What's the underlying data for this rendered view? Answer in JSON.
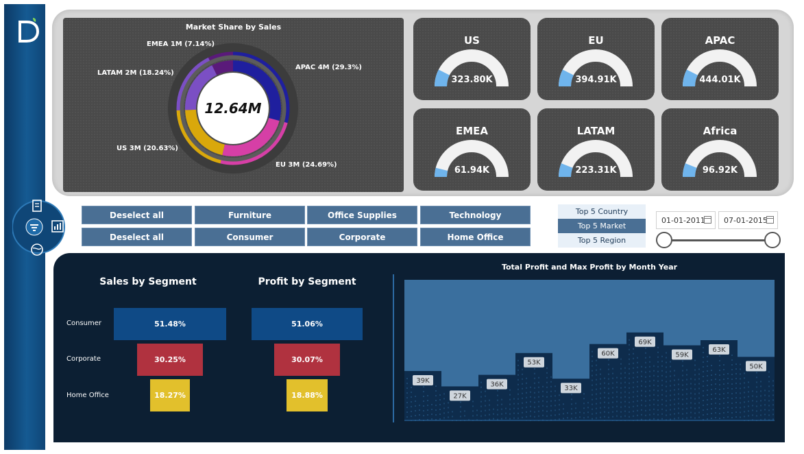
{
  "donut": {
    "title": "Market Share by Sales",
    "center_value": "12.64M",
    "labels": [
      {
        "text": "EMEA 1M (7.14%)"
      },
      {
        "text": "APAC 4M (29.3%)"
      },
      {
        "text": "LATAM 2M (18.24%)"
      },
      {
        "text": "US 3M (20.63%)"
      },
      {
        "text": "EU 3M (24.69%)"
      }
    ],
    "colors": {
      "apac": "#1f1f9e",
      "eu": "#d63fa6",
      "us": "#d9a80b",
      "latam": "#7b4fc4",
      "emea": "#5a1a7a"
    }
  },
  "gauges": [
    {
      "name": "US",
      "value": "323.80K",
      "fill": 0.15
    },
    {
      "name": "EU",
      "value": "394.91K",
      "fill": 0.15
    },
    {
      "name": "APAC",
      "value": "444.01K",
      "fill": 0.15
    },
    {
      "name": "EMEA",
      "value": "61.94K",
      "fill": 0.08
    },
    {
      "name": "LATAM",
      "value": "223.31K",
      "fill": 0.12
    },
    {
      "name": "Africa",
      "value": "96.92K",
      "fill": 0.12
    }
  ],
  "filters": {
    "row1": [
      "Deselect all",
      "Furniture",
      "Office Supplies",
      "Technology"
    ],
    "row2": [
      "Deselect all",
      "Consumer",
      "Corporate",
      "Home Office"
    ]
  },
  "top_list": [
    "Top 5 Country",
    "Top 5 Market",
    "Top 5 Region"
  ],
  "date_range": {
    "start": "01-01-2011",
    "end": "07-01-2015"
  },
  "sales_segment": {
    "title": "Sales by Segment",
    "rows": [
      {
        "label": "Consumer",
        "value": "51.48%",
        "pct": 51.48,
        "color": "#0f4a86"
      },
      {
        "label": "Corporate",
        "value": "30.25%",
        "pct": 30.25,
        "color": "#b0323f"
      },
      {
        "label": "Home Office",
        "value": "18.27%",
        "pct": 18.27,
        "color": "#e2c02c"
      }
    ]
  },
  "profit_segment": {
    "title": "Profit by Segment",
    "rows": [
      {
        "value": "51.06%",
        "pct": 51.06,
        "color": "#0f4a86"
      },
      {
        "value": "30.07%",
        "pct": 30.07,
        "color": "#b0323f"
      },
      {
        "value": "18.88%",
        "pct": 18.88,
        "color": "#e2c02c"
      }
    ]
  },
  "chart_data": {
    "type": "area",
    "title": "Total Profit and Max Profit by Month Year",
    "series": [
      {
        "values": [
          39,
          27,
          36,
          53,
          33,
          60,
          69,
          59,
          63,
          50
        ],
        "labels": [
          "39K",
          "27K",
          "36K",
          "53K",
          "33K",
          "60K",
          "69K",
          "59K",
          "63K",
          "50K"
        ]
      }
    ],
    "ylim": [
      0,
      110
    ],
    "colors": {
      "fill": "#3a6f9e",
      "bars": "#0e2c4c"
    }
  }
}
